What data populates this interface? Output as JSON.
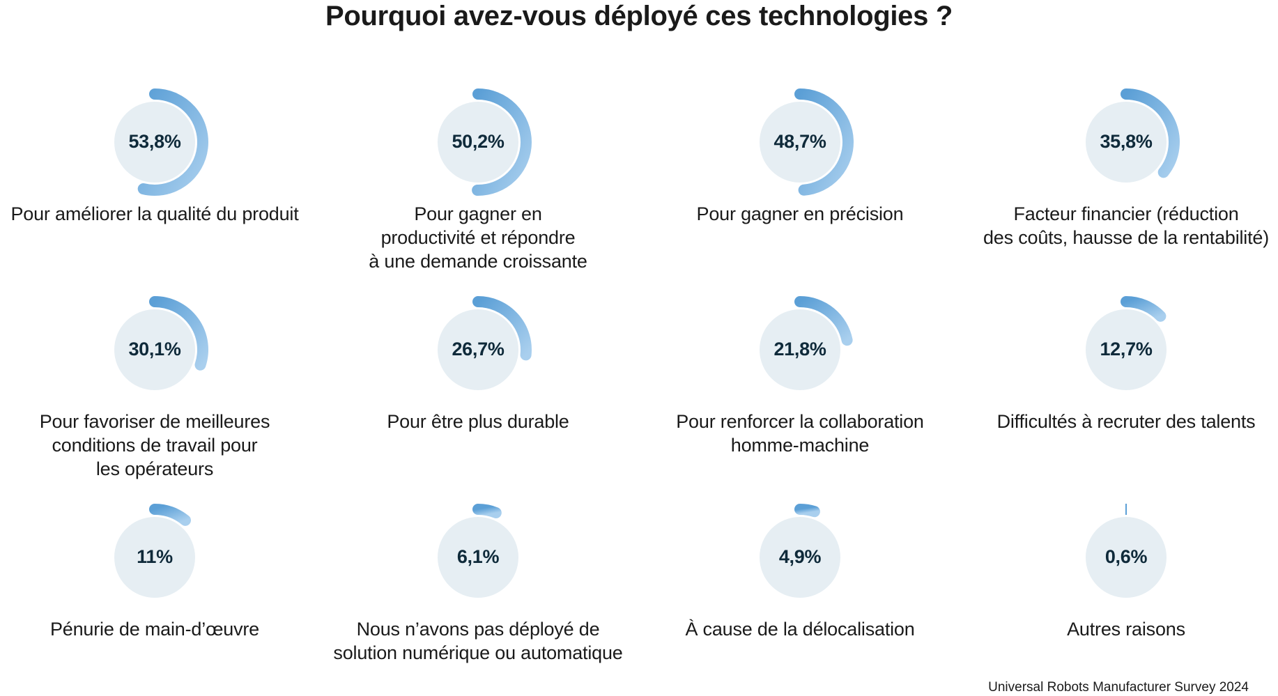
{
  "chart_data": {
    "type": "radial-progress",
    "title": "Pourquoi avez-vous déployé ces technologies ?",
    "source": "Universal Robots Manufacturer Survey 2024",
    "max_value": 100,
    "colors": {
      "arc_start": "#5b9fd6",
      "arc_end": "#a9cfee",
      "disc": "#e6eef3",
      "pct_text": "#0f2a3a"
    },
    "items": [
      {
        "value": 53.8,
        "value_label": "53,8%",
        "label": "Pour améliorer la qualité du produit"
      },
      {
        "value": 50.2,
        "value_label": "50,2%",
        "label": "Pour gagner en\nproductivité et répondre\nà une demande croissante"
      },
      {
        "value": 48.7,
        "value_label": "48,7%",
        "label": "Pour gagner en précision"
      },
      {
        "value": 35.8,
        "value_label": "35,8%",
        "label": "Facteur financier (réduction\ndes coûts, hausse de la rentabilité)"
      },
      {
        "value": 30.1,
        "value_label": "30,1%",
        "label": "Pour favoriser de meilleures\nconditions de travail pour\nles opérateurs"
      },
      {
        "value": 26.7,
        "value_label": "26,7%",
        "label": "Pour être plus durable"
      },
      {
        "value": 21.8,
        "value_label": "21,8%",
        "label": "Pour renforcer la collaboration\nhomme-machine"
      },
      {
        "value": 12.7,
        "value_label": "12,7%",
        "label": "Difficultés à recruter des talents"
      },
      {
        "value": 11,
        "value_label": "11%",
        "label": "Pénurie de main-d’œuvre"
      },
      {
        "value": 6.1,
        "value_label": "6,1%",
        "label": "Nous n’avons pas déployé de\nsolution numérique ou automatique"
      },
      {
        "value": 4.9,
        "value_label": "4,9%",
        "label": "À cause de la délocalisation"
      },
      {
        "value": 0.6,
        "value_label": "0,6%",
        "label": "Autres raisons"
      }
    ]
  }
}
